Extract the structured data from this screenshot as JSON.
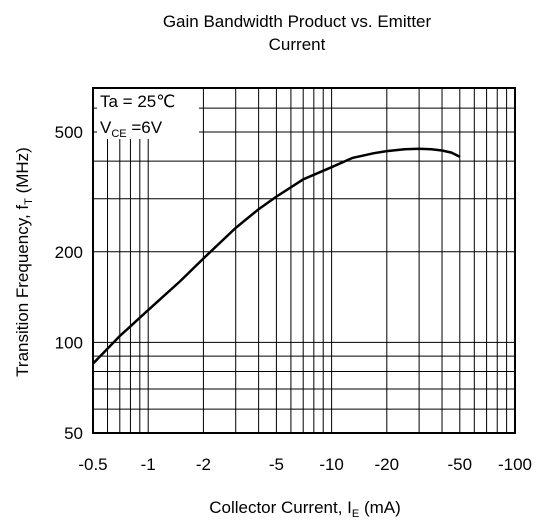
{
  "chart_data": {
    "type": "line",
    "title_lines": [
      "Gain Bandwidth Product vs. Emitter",
      "Current"
    ],
    "xlabel": {
      "main": "Collector Current, I",
      "sub": "E",
      "unit": " (mA)"
    },
    "ylabel": {
      "main": "Transition Frequency, f",
      "sub": "T",
      "unit": " (MHz)"
    },
    "xscale": "log",
    "yscale": "log",
    "xlim": [
      0.5,
      100
    ],
    "ylim": [
      50,
      700
    ],
    "x_ticks": [
      {
        "value": 0.5,
        "label": "-0.5"
      },
      {
        "value": 1,
        "label": "-1"
      },
      {
        "value": 2,
        "label": "-2"
      },
      {
        "value": 5,
        "label": "-5"
      },
      {
        "value": 10,
        "label": "-10"
      },
      {
        "value": 20,
        "label": "-20"
      },
      {
        "value": 50,
        "label": "-50"
      },
      {
        "value": 100,
        "label": "-100"
      }
    ],
    "y_ticks": [
      {
        "value": 50,
        "label": "50"
      },
      {
        "value": 100,
        "label": "100"
      },
      {
        "value": 200,
        "label": "200"
      },
      {
        "value": 500,
        "label": "500"
      }
    ],
    "x_grid": [
      0.5,
      0.6,
      0.7,
      0.8,
      0.9,
      1,
      2,
      3,
      4,
      5,
      6,
      7,
      8,
      9,
      10,
      20,
      30,
      40,
      50,
      60,
      70,
      80,
      90,
      100
    ],
    "y_grid": [
      50,
      60,
      70,
      80,
      90,
      100,
      200,
      300,
      400,
      500,
      600,
      700
    ],
    "grid": true,
    "annotation": {
      "line1": "Ta = 25℃",
      "line2_main": "V",
      "line2_sub": "CE",
      "line2_rest": " =6V"
    },
    "series": [
      {
        "x": [
          0.5,
          0.7,
          1,
          1.5,
          2,
          3,
          4,
          5,
          7,
          10,
          13,
          17,
          20,
          25,
          30,
          35,
          40,
          45,
          50
        ],
        "y": [
          85,
          105,
          128,
          160,
          190,
          240,
          277,
          305,
          348,
          382,
          410,
          425,
          432,
          438,
          440,
          438,
          434,
          427,
          414
        ]
      }
    ]
  }
}
